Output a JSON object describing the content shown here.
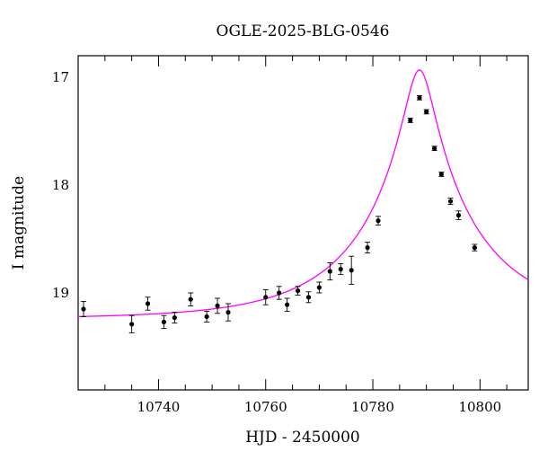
{
  "chart_data": {
    "type": "scatter",
    "title": "OGLE-2025-BLG-0546",
    "xlabel": "HJD - 2450000",
    "ylabel": "I magnitude",
    "xlim": [
      10725,
      10809
    ],
    "ylim": [
      19.9,
      16.8
    ],
    "y_inverted": true,
    "grid": false,
    "x_ticks": [
      10740,
      10760,
      10780,
      10800
    ],
    "y_ticks": [
      17,
      18,
      19
    ],
    "colors": {
      "points": "#000000",
      "model": "#ff00ff",
      "axes": "#000000"
    },
    "series": [
      {
        "type": "scatter",
        "x": [
          10726,
          10735,
          10738,
          10741,
          10743,
          10746,
          10749,
          10751,
          10753,
          10760,
          10762.5,
          10764,
          10766,
          10768,
          10770,
          10772,
          10774,
          10776,
          10779,
          10781,
          10787,
          10788.7,
          10790,
          10791.5,
          10792.8,
          10794.5,
          10796,
          10799
        ],
        "y": [
          19.15,
          19.29,
          19.1,
          19.27,
          19.23,
          19.06,
          19.22,
          19.12,
          19.18,
          19.04,
          19.0,
          19.11,
          18.98,
          19.04,
          18.95,
          18.8,
          18.78,
          18.79,
          18.58,
          18.33,
          17.4,
          17.19,
          17.32,
          17.66,
          17.9,
          18.15,
          18.28,
          18.58
        ],
        "err": [
          0.07,
          0.08,
          0.06,
          0.06,
          0.05,
          0.06,
          0.05,
          0.07,
          0.08,
          0.07,
          0.06,
          0.06,
          0.04,
          0.05,
          0.05,
          0.08,
          0.05,
          0.13,
          0.05,
          0.04,
          0.02,
          0.02,
          0.02,
          0.02,
          0.02,
          0.03,
          0.04,
          0.03
        ]
      },
      {
        "type": "line",
        "model": "pspl",
        "params": {
          "t0": 10788.7,
          "u0": 0.12,
          "tE": 22,
          "base": 19.24,
          "fs": 1.0
        }
      }
    ]
  }
}
